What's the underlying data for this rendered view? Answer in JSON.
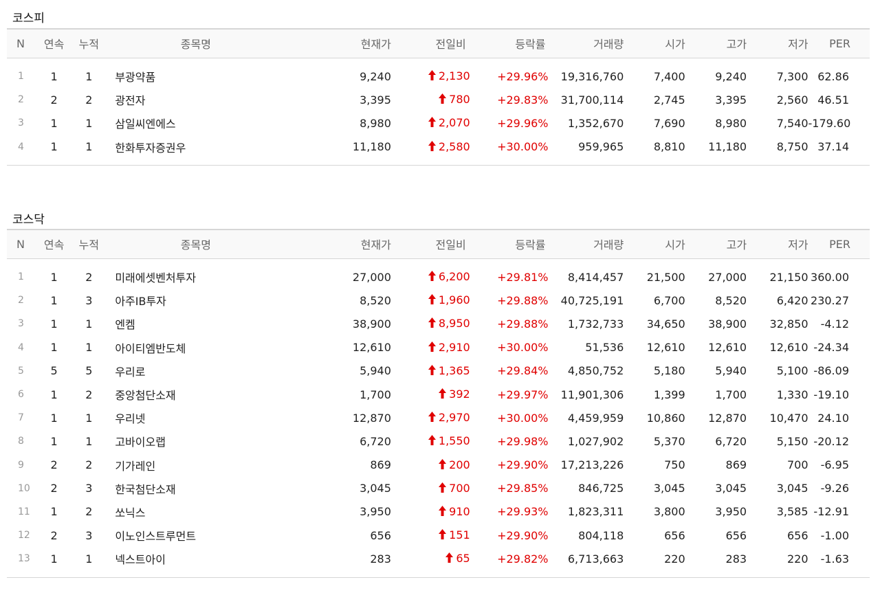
{
  "headers": {
    "n": "N",
    "cont": "연속",
    "cum": "누적",
    "name": "종목명",
    "price": "현재가",
    "change": "전일비",
    "rate": "등락률",
    "volume": "거래량",
    "open": "시가",
    "high": "고가",
    "low": "저가",
    "per": "PER"
  },
  "kospi": {
    "title": "코스피",
    "rows": [
      {
        "n": "1",
        "cont": "1",
        "cum": "1",
        "name": "부광약품",
        "price": "9,240",
        "change": "2,130",
        "rate": "+29.96%",
        "volume": "19,316,760",
        "open": "7,400",
        "high": "9,240",
        "low": "7,300",
        "per": "62.86"
      },
      {
        "n": "2",
        "cont": "2",
        "cum": "2",
        "name": "광전자",
        "price": "3,395",
        "change": "780",
        "rate": "+29.83%",
        "volume": "31,700,114",
        "open": "2,745",
        "high": "3,395",
        "low": "2,560",
        "per": "46.51"
      },
      {
        "n": "3",
        "cont": "1",
        "cum": "1",
        "name": "삼일씨엔에스",
        "price": "8,980",
        "change": "2,070",
        "rate": "+29.96%",
        "volume": "1,352,670",
        "open": "7,690",
        "high": "8,980",
        "low": "7,540",
        "per": "-179.60"
      },
      {
        "n": "4",
        "cont": "1",
        "cum": "1",
        "name": "한화투자증권우",
        "price": "11,180",
        "change": "2,580",
        "rate": "+30.00%",
        "volume": "959,965",
        "open": "8,810",
        "high": "11,180",
        "low": "8,750",
        "per": "37.14"
      }
    ]
  },
  "kosdaq": {
    "title": "코스닥",
    "rows": [
      {
        "n": "1",
        "cont": "1",
        "cum": "2",
        "name": "미래에셋벤처투자",
        "price": "27,000",
        "change": "6,200",
        "rate": "+29.81%",
        "volume": "8,414,457",
        "open": "21,500",
        "high": "27,000",
        "low": "21,150",
        "per": "360.00"
      },
      {
        "n": "2",
        "cont": "1",
        "cum": "3",
        "name": "아주IB투자",
        "price": "8,520",
        "change": "1,960",
        "rate": "+29.88%",
        "volume": "40,725,191",
        "open": "6,700",
        "high": "8,520",
        "low": "6,420",
        "per": "230.27"
      },
      {
        "n": "3",
        "cont": "1",
        "cum": "1",
        "name": "엔켐",
        "price": "38,900",
        "change": "8,950",
        "rate": "+29.88%",
        "volume": "1,732,733",
        "open": "34,650",
        "high": "38,900",
        "low": "32,850",
        "per": "-4.12"
      },
      {
        "n": "4",
        "cont": "1",
        "cum": "1",
        "name": "아이티엠반도체",
        "price": "12,610",
        "change": "2,910",
        "rate": "+30.00%",
        "volume": "51,536",
        "open": "12,610",
        "high": "12,610",
        "low": "12,610",
        "per": "-24.34"
      },
      {
        "n": "5",
        "cont": "5",
        "cum": "5",
        "name": "우리로",
        "price": "5,940",
        "change": "1,365",
        "rate": "+29.84%",
        "volume": "4,850,752",
        "open": "5,180",
        "high": "5,940",
        "low": "5,100",
        "per": "-86.09"
      },
      {
        "n": "6",
        "cont": "1",
        "cum": "2",
        "name": "중앙첨단소재",
        "price": "1,700",
        "change": "392",
        "rate": "+29.97%",
        "volume": "11,901,306",
        "open": "1,399",
        "high": "1,700",
        "low": "1,330",
        "per": "-19.10"
      },
      {
        "n": "7",
        "cont": "1",
        "cum": "1",
        "name": "우리넷",
        "price": "12,870",
        "change": "2,970",
        "rate": "+30.00%",
        "volume": "4,459,959",
        "open": "10,860",
        "high": "12,870",
        "low": "10,470",
        "per": "24.10"
      },
      {
        "n": "8",
        "cont": "1",
        "cum": "1",
        "name": "고바이오랩",
        "price": "6,720",
        "change": "1,550",
        "rate": "+29.98%",
        "volume": "1,027,902",
        "open": "5,370",
        "high": "6,720",
        "low": "5,150",
        "per": "-20.12"
      },
      {
        "n": "9",
        "cont": "2",
        "cum": "2",
        "name": "기가레인",
        "price": "869",
        "change": "200",
        "rate": "+29.90%",
        "volume": "17,213,226",
        "open": "750",
        "high": "869",
        "low": "700",
        "per": "-6.95"
      },
      {
        "n": "10",
        "cont": "2",
        "cum": "3",
        "name": "한국첨단소재",
        "price": "3,045",
        "change": "700",
        "rate": "+29.85%",
        "volume": "846,725",
        "open": "3,045",
        "high": "3,045",
        "low": "3,045",
        "per": "-9.26"
      },
      {
        "n": "11",
        "cont": "1",
        "cum": "2",
        "name": "쏘닉스",
        "price": "3,950",
        "change": "910",
        "rate": "+29.93%",
        "volume": "1,823,311",
        "open": "3,800",
        "high": "3,950",
        "low": "3,585",
        "per": "-12.91"
      },
      {
        "n": "12",
        "cont": "2",
        "cum": "3",
        "name": "이노인스트루먼트",
        "price": "656",
        "change": "151",
        "rate": "+29.90%",
        "volume": "804,118",
        "open": "656",
        "high": "656",
        "low": "656",
        "per": "-1.00"
      },
      {
        "n": "13",
        "cont": "1",
        "cum": "1",
        "name": "넥스트아이",
        "price": "283",
        "change": "65",
        "rate": "+29.82%",
        "volume": "6,713,663",
        "open": "220",
        "high": "283",
        "low": "220",
        "per": "-1.63"
      }
    ]
  },
  "icons": {
    "change_up": "up-arrow-icon"
  },
  "colors": {
    "up": "#e00000",
    "border": "#d6d6d6",
    "header_bg": "#f9f9f9"
  }
}
